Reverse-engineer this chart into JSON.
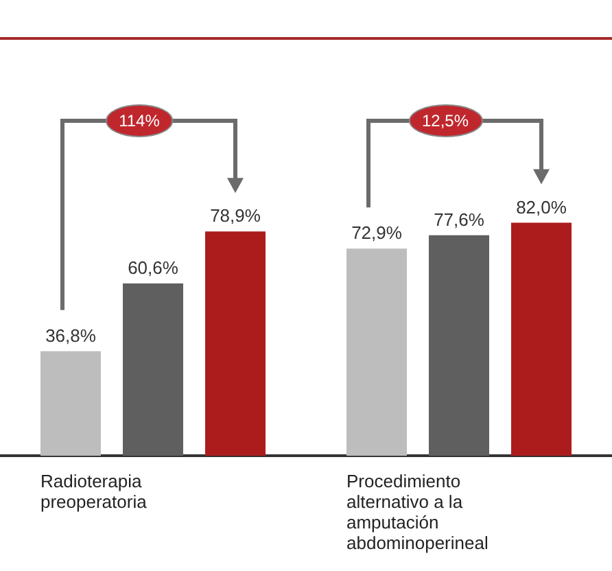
{
  "chart_data": {
    "type": "bar",
    "categories": [
      "Radioterapia preoperatoria",
      "Procedimiento alternativo a la amputación abdominoperineal"
    ],
    "series": [
      {
        "color": "#bdbdbd",
        "values": [
          36.8,
          72.9
        ],
        "value_labels": [
          "36,8%",
          "72,9%"
        ]
      },
      {
        "color": "#5f5f5f",
        "values": [
          60.6,
          77.6
        ],
        "value_labels": [
          "60,6%",
          "77,6%"
        ]
      },
      {
        "color": "#ad1c1c",
        "values": [
          78.9,
          82.0
        ],
        "value_labels": [
          "78,9%",
          "82,0%"
        ]
      }
    ],
    "annotations": [
      "114%",
      "12,5%"
    ]
  }
}
